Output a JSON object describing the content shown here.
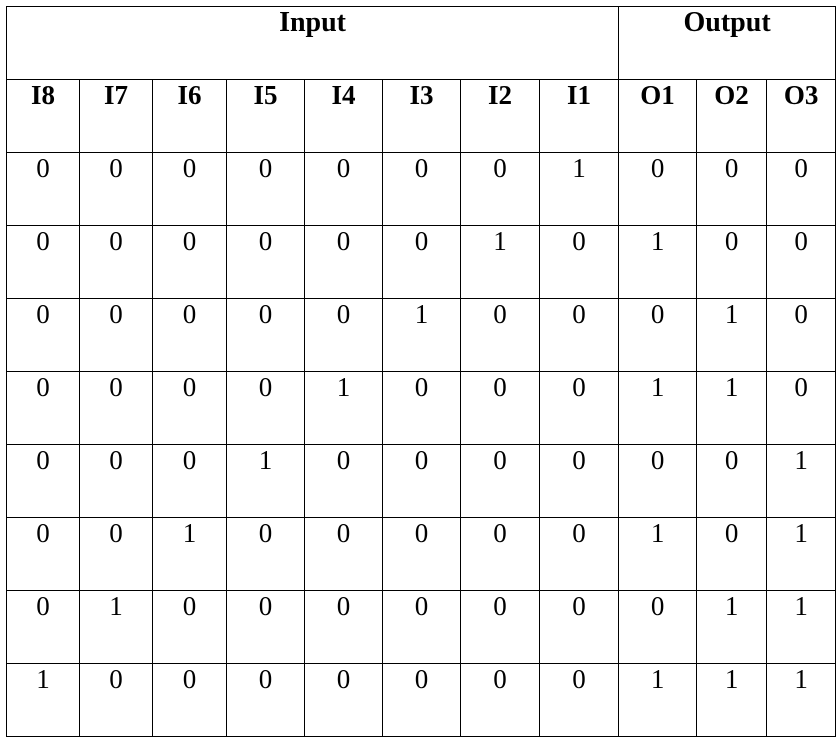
{
  "table": {
    "groups": {
      "input": "Input",
      "output": "Output"
    },
    "input_headers": [
      "I8",
      "I7",
      "I6",
      "I5",
      "I4",
      "I3",
      "I2",
      "I1"
    ],
    "output_headers": [
      "O1",
      "O2",
      "O3"
    ],
    "rows": [
      {
        "inputs": [
          "0",
          "0",
          "0",
          "0",
          "0",
          "0",
          "0",
          "1"
        ],
        "outputs": [
          "0",
          "0",
          "0"
        ]
      },
      {
        "inputs": [
          "0",
          "0",
          "0",
          "0",
          "0",
          "0",
          "1",
          "0"
        ],
        "outputs": [
          "1",
          "0",
          "0"
        ]
      },
      {
        "inputs": [
          "0",
          "0",
          "0",
          "0",
          "0",
          "1",
          "0",
          "0"
        ],
        "outputs": [
          "0",
          "1",
          "0"
        ]
      },
      {
        "inputs": [
          "0",
          "0",
          "0",
          "0",
          "1",
          "0",
          "0",
          "0"
        ],
        "outputs": [
          "1",
          "1",
          "0"
        ]
      },
      {
        "inputs": [
          "0",
          "0",
          "0",
          "1",
          "0",
          "0",
          "0",
          "0"
        ],
        "outputs": [
          "0",
          "0",
          "1"
        ]
      },
      {
        "inputs": [
          "0",
          "0",
          "1",
          "0",
          "0",
          "0",
          "0",
          "0"
        ],
        "outputs": [
          "1",
          "0",
          "1"
        ]
      },
      {
        "inputs": [
          "0",
          "1",
          "0",
          "0",
          "0",
          "0",
          "0",
          "0"
        ],
        "outputs": [
          "0",
          "1",
          "1"
        ]
      },
      {
        "inputs": [
          "1",
          "0",
          "0",
          "0",
          "0",
          "0",
          "0",
          "0"
        ],
        "outputs": [
          "1",
          "1",
          "1"
        ]
      }
    ]
  }
}
